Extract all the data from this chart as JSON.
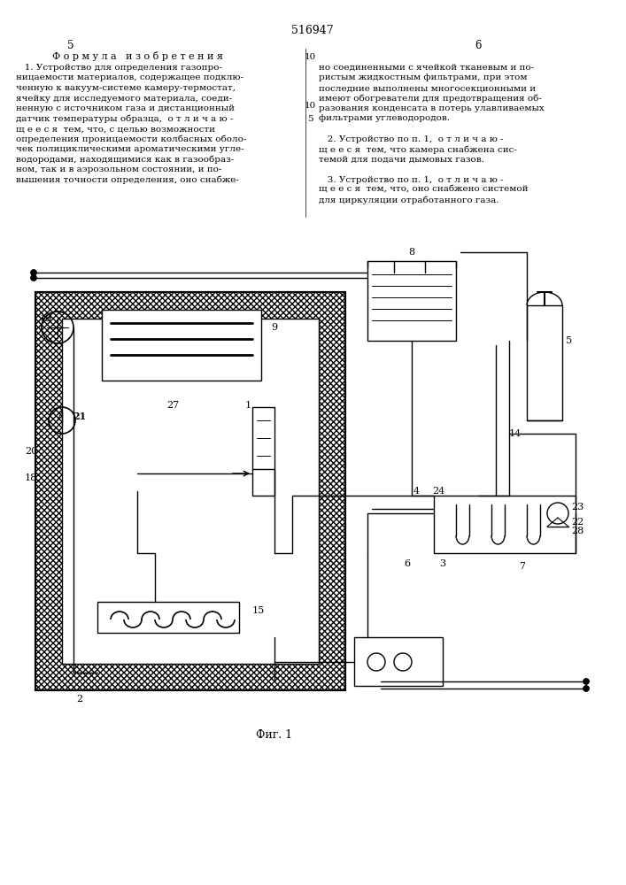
{
  "title": "516947",
  "page_left": "5",
  "page_right": "6",
  "formula_header": "Ф о р м у л а   и з о б р е т е н и я",
  "text_col1": [
    "   1. Устройство для определения газопро-",
    "ницаемости материалов, содержащее подклю-",
    "ченную к вакуум-системе камеру-термостат,",
    "ячейку для исследуемого материала, соеди-",
    "ненную с источником газа и дистанционный",
    "датчик температуры образца,  о т л и ч а ю -",
    "щ е е с я  тем, что, с целью возможности",
    "определения проницаемости колбасных оболо-",
    "чек полициклическими ароматическими угле-",
    "водородами, находящимися как в газообраз-",
    "ном, так и в аэрозольном состоянии, и по-",
    "вышения точности определения, оно снабже-"
  ],
  "text_col1_cont": [
    "но соединенными с ячейкой тканевым и по-",
    "ристым жидкостным фильтрами, при этом",
    "последние выполнены многосекционными и",
    "имеют обогреватели для предотвращения об-",
    "разования конденсата в потерь улавливаемых",
    "фильтрами углеводородов.",
    "",
    "   2. Устройство по п. 1,  о т л и ч а ю -",
    "щ е е с я  тем, что камера снабжена сис-",
    "темой для подачи дымовых газов.",
    "",
    "   3. Устройство по п. 1,  о т л и ч а ю -",
    "щ е е с я  тем, что, оно снабжено системой",
    "для циркуляции отработанного газа."
  ],
  "line_number": "5",
  "fig_caption": "Фиг. 1",
  "bg_color": "#ffffff",
  "line_color": "#000000",
  "hatch_color": "#000000",
  "text_color": "#000000",
  "font_size_body": 7.5,
  "font_size_title": 9,
  "font_size_number": 8
}
